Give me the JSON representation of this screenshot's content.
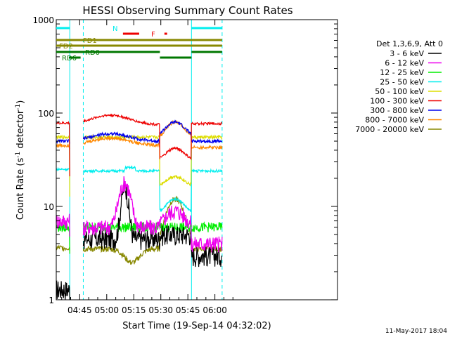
{
  "chart_data": {
    "type": "line",
    "title": "HESSI Observing Summary Count Rates",
    "xlabel": "Start Time (19-Sep-14 04:32:02)",
    "ylabel_parts": [
      "Count Rate (s",
      "-1",
      " detector",
      "-1",
      ")"
    ],
    "ylog": true,
    "ylim": [
      1,
      1000
    ],
    "xlim_min": [
      0,
      156
    ],
    "x_ticks": [
      {
        "t": 13,
        "label": "04:45"
      },
      {
        "t": 28,
        "label": "05:00"
      },
      {
        "t": 43,
        "label": "05:15"
      },
      {
        "t": 58,
        "label": "05:30"
      },
      {
        "t": 73,
        "label": "05:45"
      },
      {
        "t": 88,
        "label": "06:00"
      }
    ],
    "y_tick_labels": [
      {
        "v": 1,
        "label": "1"
      },
      {
        "v": 10,
        "label": "10"
      },
      {
        "v": 100,
        "label": "100"
      },
      {
        "v": 1000,
        "label": "1000"
      }
    ],
    "legend_header": "Det 1,3,6,9, Att 0",
    "series": [
      {
        "name": "3 - 6 keV",
        "color": "#000000"
      },
      {
        "name": "6 - 12 keV",
        "color": "#ee00ee"
      },
      {
        "name": "12 - 25 keV",
        "color": "#00ee00"
      },
      {
        "name": "25 - 50 keV",
        "color": "#00eeee"
      },
      {
        "name": "50 - 100 keV",
        "color": "#dddd00"
      },
      {
        "name": "100 - 300 keV",
        "color": "#ee0000"
      },
      {
        "name": "300 - 800 keV",
        "color": "#0000ee"
      },
      {
        "name": "800 - 7000 keV",
        "color": "#ff8800"
      },
      {
        "name": "7000 - 20000 keV",
        "color": "#888800"
      }
    ],
    "flags": [
      {
        "label": "N",
        "color": "#00eeee",
        "segments": [
          [
            0,
            7.5
          ],
          [
            75,
            92
          ]
        ]
      },
      {
        "label": "F",
        "color": "#ee0000",
        "segments": [
          [
            37,
            46
          ],
          [
            60,
            61.5
          ]
        ]
      },
      {
        "label": "FD1",
        "color": "#888800",
        "segments": [
          [
            0,
            92
          ]
        ]
      },
      {
        "label": "FD2",
        "color": "#888800",
        "segments": [
          [
            0,
            92
          ]
        ]
      },
      {
        "label": "RD0",
        "color": "#007700",
        "segments": [
          [
            0,
            57.5
          ],
          [
            75,
            92
          ]
        ]
      },
      {
        "label": "RD6",
        "color": "#007700",
        "segments": [
          [
            7,
            13.5
          ],
          [
            57.5,
            75
          ]
        ]
      }
    ],
    "night_boundaries_min": [
      7.5,
      15,
      75,
      92
    ],
    "footer_date": "11-May-2017 18:04"
  }
}
